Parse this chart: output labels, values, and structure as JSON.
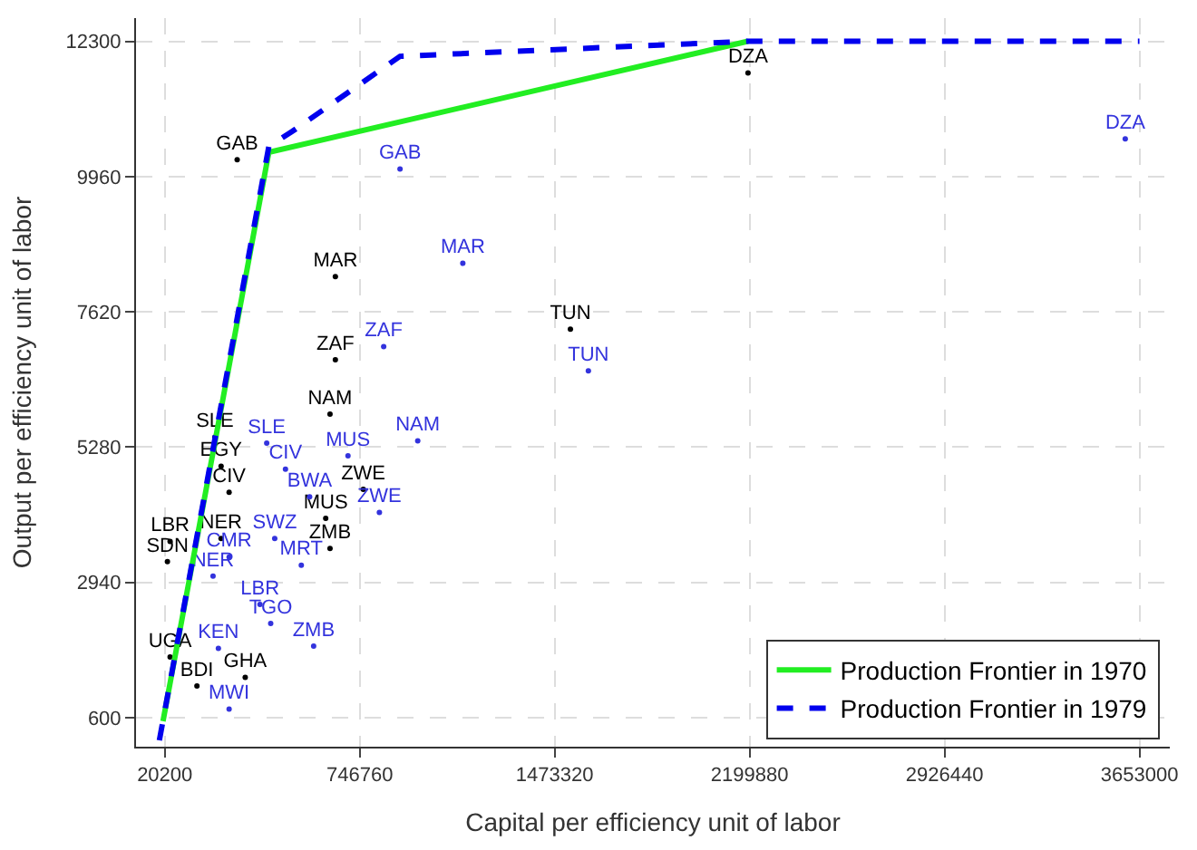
{
  "chart_data": {
    "type": "scatter",
    "xlabel": "Capital per efficiency unit of labor",
    "ylabel": "Output per efficiency unit of labor",
    "xlim": [
      -87000,
      3766000
    ],
    "ylim": [
      100,
      12700
    ],
    "xticks": [
      20200,
      746760,
      1473320,
      2199880,
      2926440,
      3653000
    ],
    "yticks": [
      600,
      2940,
      5280,
      7620,
      9960,
      12300
    ],
    "grid": true,
    "legend": "bottom right",
    "series": [
      {
        "marker": "circle",
        "color": "#000000",
        "x": [
          290000,
          656000,
          656000,
          636000,
          1532000,
          2194000,
          207000,
          230000,
          260000,
          760000,
          620000,
          636000,
          40000,
          230000,
          30000,
          320000,
          140000,
          40000
        ],
        "values": [
          10250,
          8230,
          6790,
          5850,
          7320,
          11750,
          5450,
          4950,
          4500,
          4550,
          4050,
          3530,
          3650,
          3700,
          3300,
          1300,
          1150,
          1650
        ],
        "value_labels": [
          "GAB",
          "MAR",
          "ZAF",
          "NAM",
          "TUN",
          "DZA",
          "SLE",
          "EGY",
          "CIV",
          "ZWE",
          "MUS",
          "ZMB",
          "LBR",
          "NER",
          "SDN",
          "GHA",
          "BDI",
          "UGA"
        ]
      },
      {
        "marker": "circle",
        "color": "#3333dd",
        "x": [
          3600000,
          897000,
          1131000,
          836000,
          1599000,
          963000,
          703000,
          400000,
          470000,
          820000,
          430000,
          529000,
          575000,
          375000,
          415000,
          220000,
          260000,
          200000,
          260000,
          560000
        ],
        "values": [
          10610,
          10090,
          8460,
          7020,
          6600,
          5390,
          5130,
          5350,
          4900,
          4150,
          3700,
          3240,
          1840,
          2560,
          2230,
          1800,
          3380,
          3050,
          750,
          4420
        ],
        "value_labels": [
          "DZA",
          "GAB",
          "MAR",
          "ZAF",
          "TUN",
          "NAM",
          "MUS",
          "SLE",
          "CIV",
          "ZWE",
          "SWZ",
          "MRT",
          "ZMB",
          "LBR",
          "TGO",
          "KEN",
          "CMR",
          "NER",
          "MWI",
          "BWA"
        ]
      },
      {
        "type": "line",
        "name": "Production Frontier in 1970",
        "color": "#22ee22",
        "line_style": "solid",
        "x": [
          13500,
          408000,
          2194000
        ],
        "values": [
          540,
          10380,
          12300
        ]
      },
      {
        "type": "line",
        "name": "Production Frontier in 1979",
        "color": "#0000ee",
        "line_style": "dashed",
        "x": [
          0,
          408000,
          495000,
          897000,
          2194000,
          3653000
        ],
        "values": [
          210,
          10480,
          10740,
          12040,
          12300,
          12300
        ]
      }
    ]
  }
}
